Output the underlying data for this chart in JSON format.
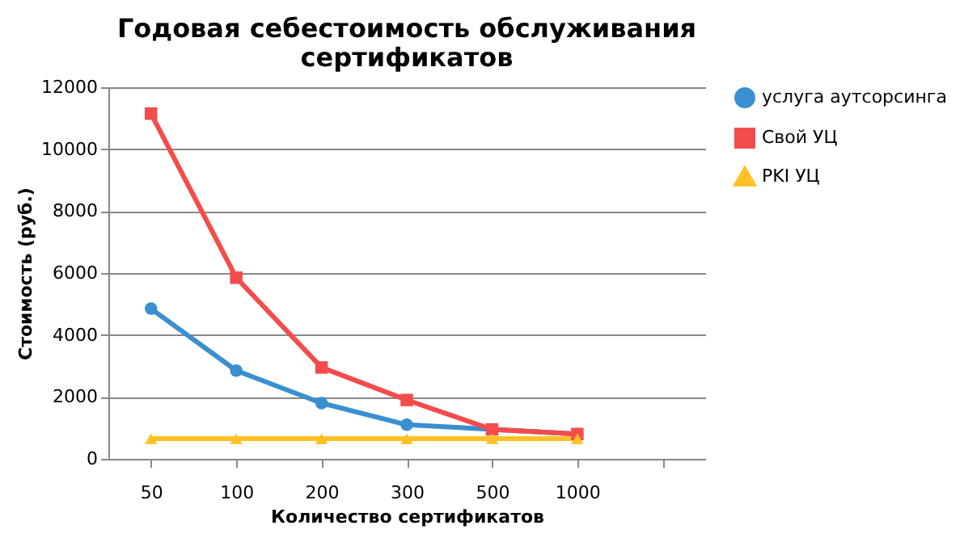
{
  "chart_data": {
    "type": "line",
    "title": "Годовая себестоимость обслуживания\nсертификатов",
    "xlabel": "Количество сертификатов",
    "ylabel": "Стоимость (руб.)",
    "categories": [
      "50",
      "100",
      "200",
      "300",
      "500",
      "1000",
      null
    ],
    "series": [
      {
        "name": "услуга аутсорсинга",
        "color": "#3a8fd1",
        "marker": "circle",
        "values": [
          4850,
          2850,
          1800,
          1100,
          950,
          800,
          null
        ]
      },
      {
        "name": "Свой УЦ",
        "color": "#f44c4c",
        "marker": "square",
        "values": [
          11150,
          5850,
          2950,
          1900,
          950,
          800,
          null
        ]
      },
      {
        "name": "PKI УЦ",
        "color": "#ffc125",
        "marker": "triangle",
        "values": [
          650,
          650,
          650,
          650,
          650,
          650,
          null
        ]
      }
    ],
    "ylim": [
      0,
      12000
    ],
    "yticks": [
      0,
      2000,
      4000,
      6000,
      8000,
      10000,
      12000
    ],
    "grid": "y",
    "legend": "right"
  }
}
